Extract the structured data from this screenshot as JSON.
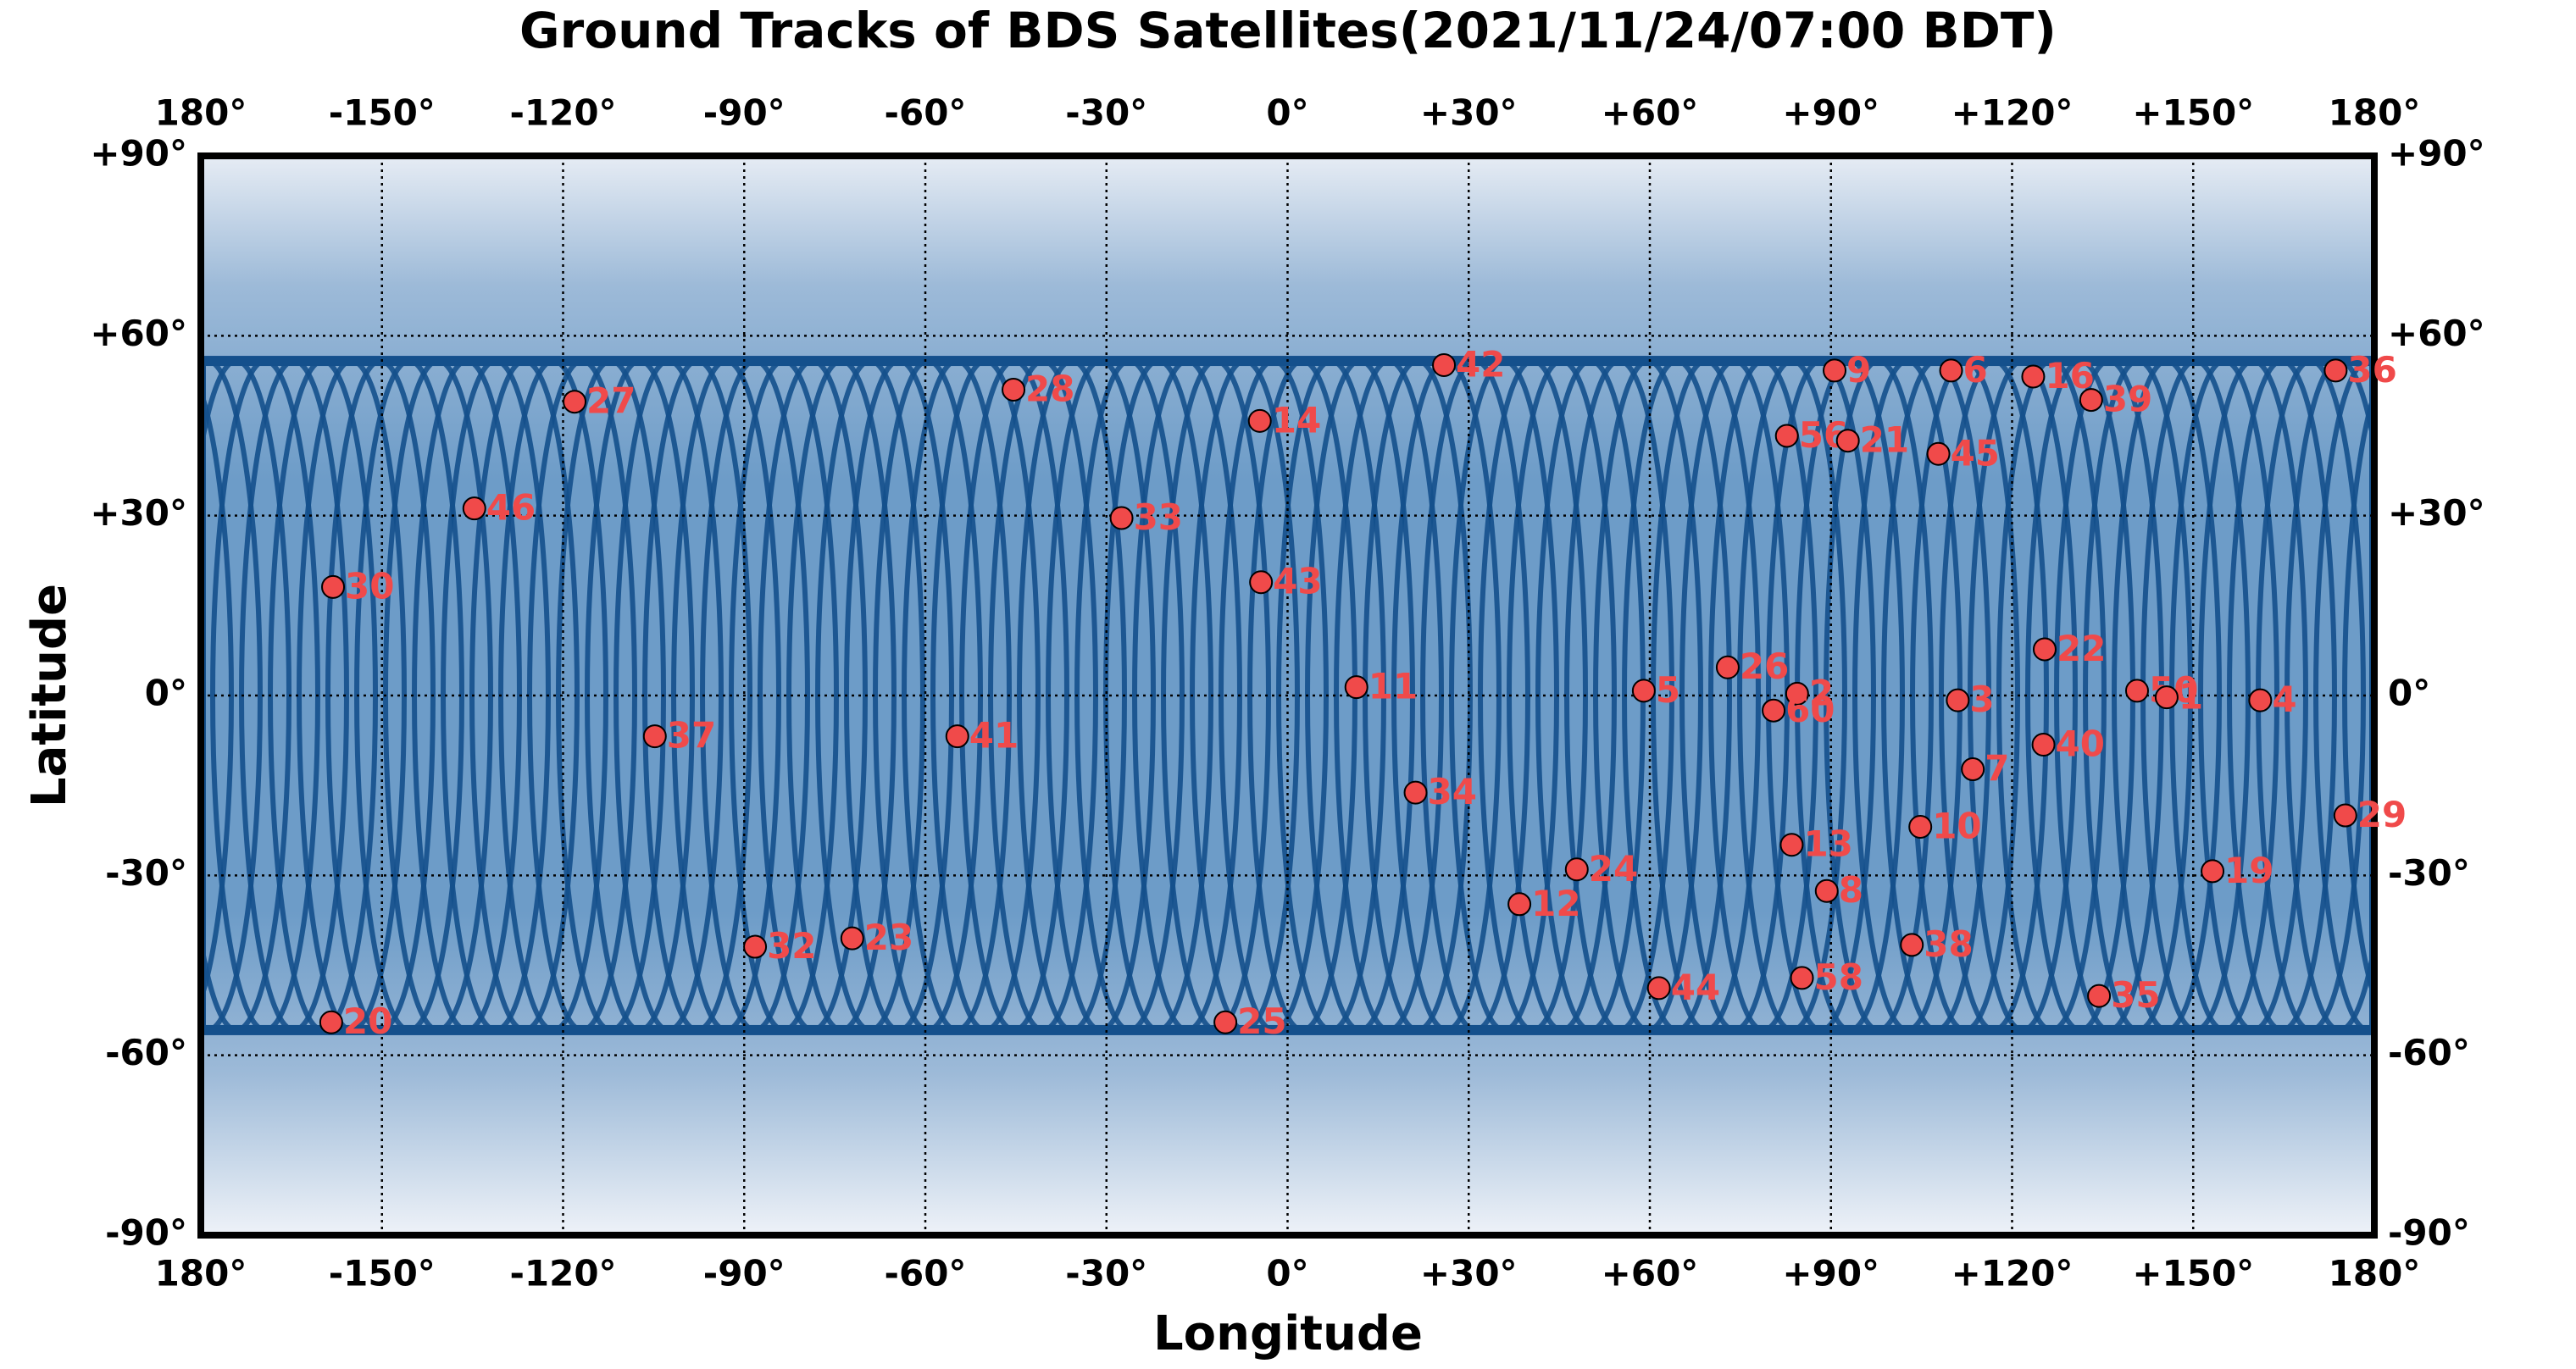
{
  "chart_data": {
    "type": "scatter",
    "title": "Ground Tracks of BDS Satellites(2021/11/24/07:00 BDT)",
    "x_label": "Longitude",
    "y_label": "Latitude",
    "xlim": [
      -180,
      180
    ],
    "ylim": [
      -90,
      90
    ],
    "xticks": [
      {
        "value": -180,
        "label": "180°"
      },
      {
        "value": -150,
        "label": "-150°"
      },
      {
        "value": -120,
        "label": "-120°"
      },
      {
        "value": -90,
        "label": "-90°"
      },
      {
        "value": -60,
        "label": "-60°"
      },
      {
        "value": -30,
        "label": "-30°"
      },
      {
        "value": 0,
        "label": "0°"
      },
      {
        "value": 30,
        "label": "+30°"
      },
      {
        "value": 60,
        "label": "+60°"
      },
      {
        "value": 90,
        "label": "+90°"
      },
      {
        "value": 120,
        "label": "+120°"
      },
      {
        "value": 150,
        "label": "+150°"
      },
      {
        "value": 180,
        "label": "180°"
      }
    ],
    "yticks": [
      {
        "value": 90,
        "label": "+90°"
      },
      {
        "value": 60,
        "label": "+60°"
      },
      {
        "value": 30,
        "label": "+30°"
      },
      {
        "value": 0,
        "label": "0°"
      },
      {
        "value": -30,
        "label": "-30°"
      },
      {
        "value": -60,
        "label": "-60°"
      },
      {
        "value": -90,
        "label": "-90°"
      }
    ],
    "grid": true,
    "color": "#f04a4a",
    "point_labels": [
      "30",
      "27",
      "46",
      "28",
      "14",
      "42",
      "33",
      "43",
      "11",
      "37",
      "41",
      "34",
      "5",
      "26",
      "2",
      "60",
      "9",
      "6",
      "16",
      "39",
      "36",
      "56",
      "21",
      "45",
      "22",
      "3",
      "50",
      "1",
      "4",
      "40",
      "7",
      "29",
      "10",
      "13",
      "19",
      "24",
      "12",
      "8",
      "32",
      "23",
      "38",
      "58",
      "44",
      "35",
      "20",
      "25"
    ],
    "x": [
      -158.1,
      -118.1,
      -134.7,
      -45.4,
      -4.6,
      25.9,
      -27.5,
      -4.4,
      11.4,
      -104.8,
      -54.7,
      21.2,
      59.0,
      72.9,
      84.4,
      80.5,
      90.6,
      109.9,
      123.5,
      133.1,
      173.6,
      82.7,
      92.8,
      107.8,
      125.4,
      111.0,
      140.7,
      145.6,
      161.1,
      125.2,
      113.5,
      175.2,
      104.8,
      83.5,
      153.2,
      47.9,
      38.4,
      89.3,
      -88.2,
      -72.1,
      103.4,
      85.2,
      61.5,
      134.4,
      -158.4,
      -10.3
    ],
    "y": [
      18.1,
      49.0,
      31.2,
      51.0,
      45.8,
      55.1,
      29.6,
      18.9,
      1.4,
      -6.8,
      -6.8,
      -16.2,
      0.8,
      4.7,
      0.3,
      -2.5,
      54.2,
      54.2,
      53.2,
      49.3,
      54.2,
      43.3,
      42.5,
      40.3,
      7.7,
      -0.8,
      0.8,
      -0.3,
      -0.8,
      -8.2,
      -12.3,
      -20.0,
      -21.9,
      -24.9,
      -29.3,
      -29.0,
      -34.8,
      -32.6,
      -41.9,
      -40.5,
      -41.6,
      -47.1,
      -48.8,
      -50.1,
      -54.5,
      -54.5
    ]
  }
}
